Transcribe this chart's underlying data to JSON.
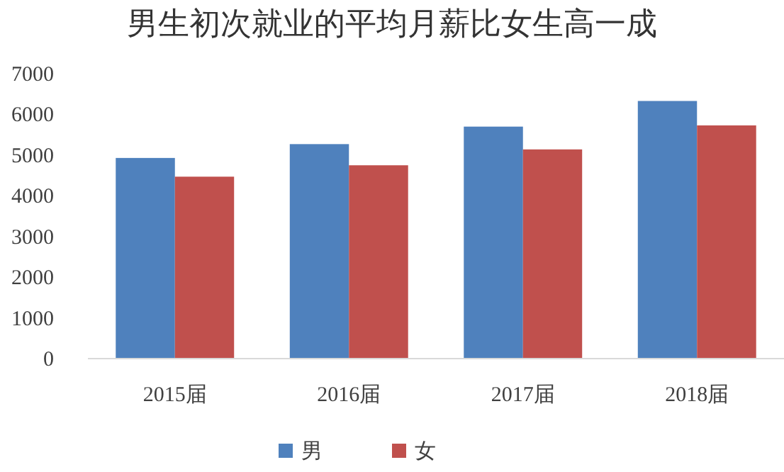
{
  "chart_data": {
    "type": "bar",
    "title": "男生初次就业的平均月薪比女生高一成",
    "categories": [
      "2015届",
      "2016届",
      "2017届",
      "2018届"
    ],
    "series": [
      {
        "name": "男",
        "color": "#4f81bd",
        "values": [
          4930,
          5270,
          5700,
          6330
        ]
      },
      {
        "name": "女",
        "color": "#c0504d",
        "values": [
          4470,
          4750,
          5140,
          5730
        ]
      }
    ],
    "ylim": [
      0,
      7000
    ],
    "yticks": [
      0,
      1000,
      2000,
      3000,
      4000,
      5000,
      6000,
      7000
    ],
    "grid": false,
    "legend": "bottom"
  }
}
